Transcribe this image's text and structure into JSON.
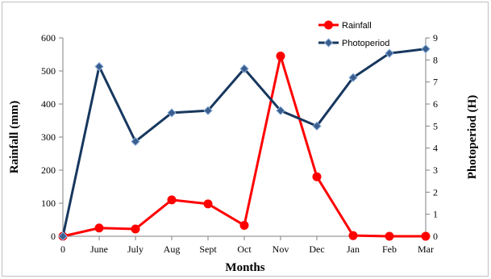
{
  "chart_data": {
    "type": "line",
    "categories": [
      "0",
      "June",
      "July",
      "Aug",
      "Sept",
      "Oct",
      "Nov",
      "Dec",
      "Jan",
      "Feb",
      "Mar"
    ],
    "series": [
      {
        "name": "Rainfall",
        "axis": "left",
        "color": "#ff0000",
        "marker": "circle",
        "values": [
          0,
          25,
          22,
          110,
          98,
          33,
          545,
          180,
          2,
          0,
          0
        ]
      },
      {
        "name": "Photoperiod",
        "axis": "right",
        "color": "#17375e",
        "marker": "diamond",
        "values": [
          0,
          7.7,
          4.3,
          5.6,
          5.7,
          7.6,
          5.7,
          5.0,
          7.2,
          8.3,
          8.5
        ]
      }
    ],
    "xlabel": "Months",
    "ylabel": "Rainfall (mm)",
    "y2label": "Photoperiod (H)",
    "ylim": [
      0,
      600
    ],
    "yticks": [
      0,
      100,
      200,
      300,
      400,
      500,
      600
    ],
    "y2lim": [
      0,
      9
    ],
    "y2ticks": [
      0,
      1,
      2,
      3,
      4,
      5,
      6,
      7,
      8,
      9
    ],
    "grid": false,
    "legend": "top-right, inside plot"
  }
}
